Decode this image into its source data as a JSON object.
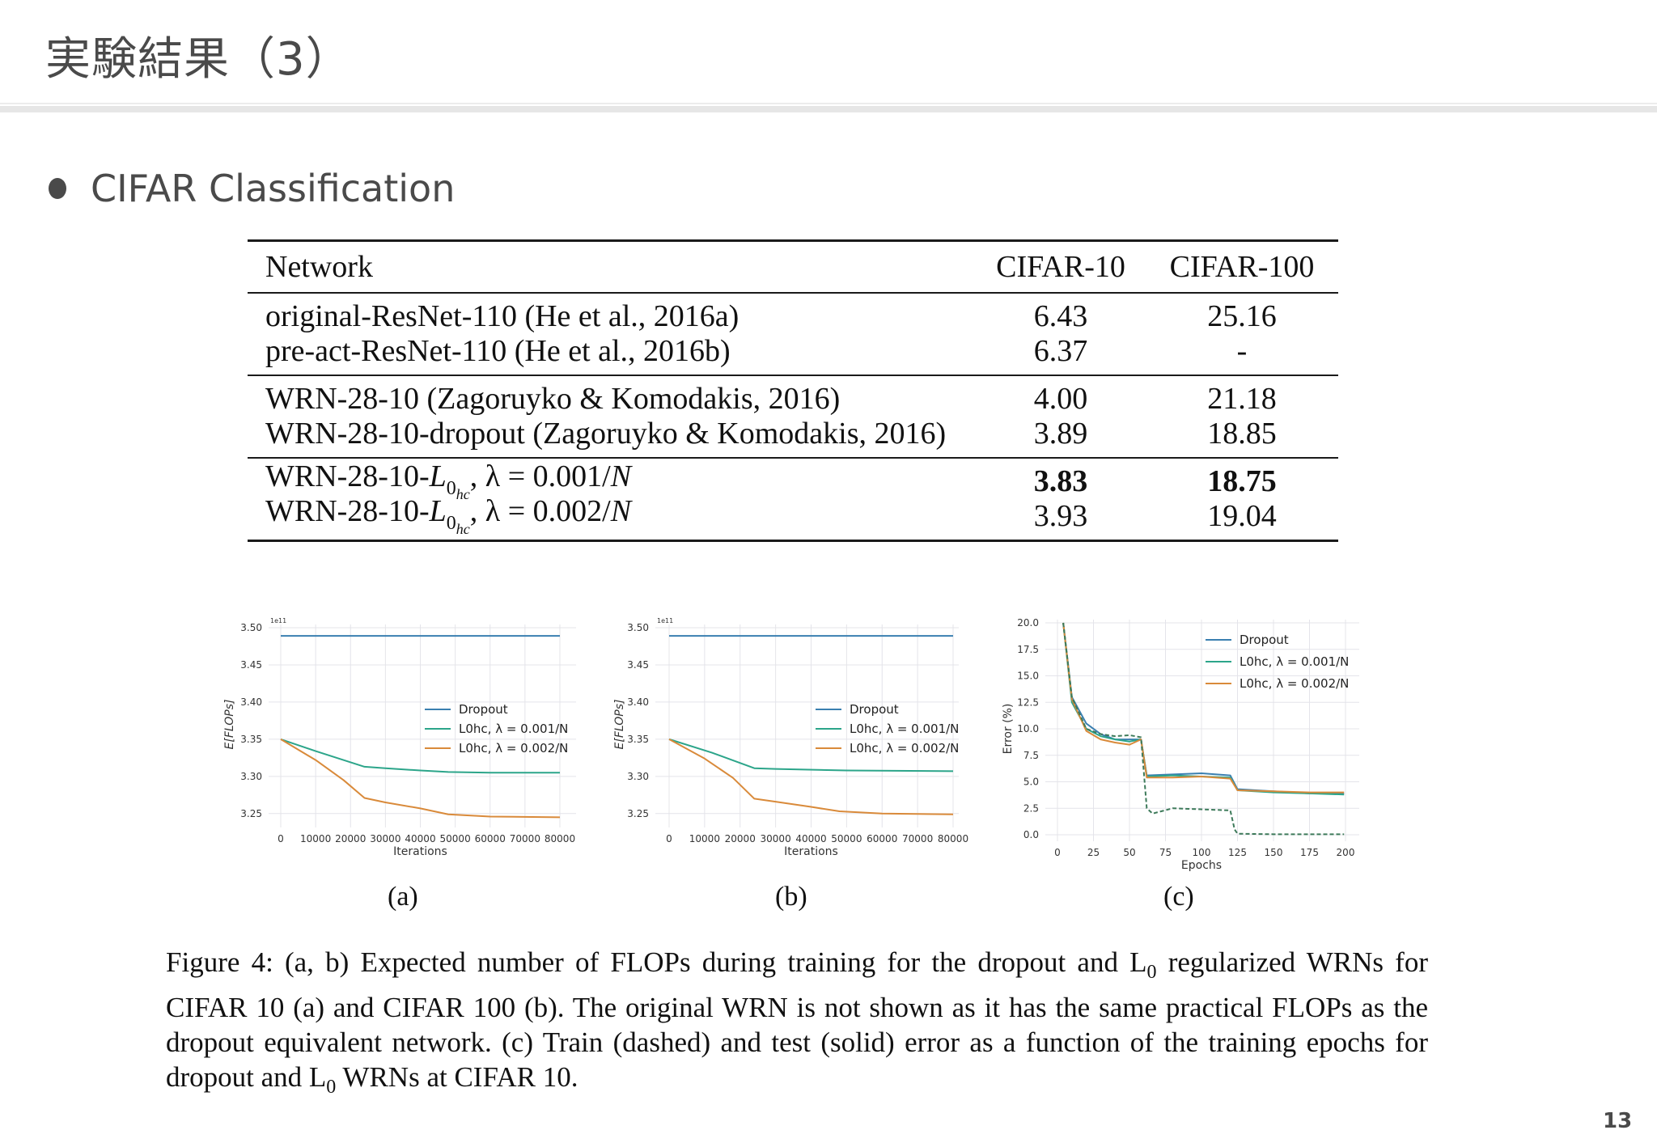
{
  "slide": {
    "title": "実験結果（3）",
    "bullet": "CIFAR Classification",
    "page_number": "13"
  },
  "table": {
    "headers": [
      "Network",
      "CIFAR-10",
      "CIFAR-100"
    ],
    "groups": [
      [
        {
          "network": "original-ResNet-110 (He et al., 2016a)",
          "cifar10": "6.43",
          "cifar100": "25.16"
        },
        {
          "network": "pre-act-ResNet-110 (He et al., 2016b)",
          "cifar10": "6.37",
          "cifar100": "-"
        }
      ],
      [
        {
          "network": "WRN-28-10 (Zagoruyko & Komodakis, 2016)",
          "cifar10": "4.00",
          "cifar100": "21.18"
        },
        {
          "network": "WRN-28-10-dropout (Zagoruyko & Komodakis, 2016)",
          "cifar10": "3.89",
          "cifar100": "18.85"
        }
      ],
      [
        {
          "network_prefix": "WRN-28-10-",
          "network_L": "L",
          "network_sub0": "0",
          "network_subhc": "hc",
          "network_suffix": ", λ = 0.001/",
          "network_N": "N",
          "cifar10": "3.83",
          "cifar100": "18.75",
          "bold": true
        },
        {
          "network_prefix": "WRN-28-10-",
          "network_L": "L",
          "network_sub0": "0",
          "network_subhc": "hc",
          "network_suffix": ", λ = 0.002/",
          "network_N": "N",
          "cifar10": "3.93",
          "cifar100": "19.04",
          "bold": false
        }
      ]
    ]
  },
  "figure": {
    "labels": [
      "(a)",
      "(b)",
      "(c)"
    ],
    "caption": [
      "Figure 4: (a, b) Expected number of FLOPs during training for the dropout and L",
      "0",
      " regularized WRNs for CIFAR 10 (a) and CIFAR 100 (b). The original WRN is not shown as it has the same practical FLOPs as the dropout equivalent network. (c) Train (dashed) and test (solid) error as a function of the training epochs for dropout and L",
      "0",
      " WRNs at CIFAR 10."
    ]
  },
  "colors": {
    "dropout": "#3a7fb0",
    "l0_001": "#2ca58a",
    "l0_002": "#d98a3a",
    "grid": "#e4e4ea",
    "text": "#4a4a4a"
  },
  "chart_data": [
    {
      "id": "a",
      "type": "line",
      "title": "",
      "xlabel": "Iterations",
      "ylabel": "E[FLOPs]",
      "y_scale_note": "1e11",
      "xlim": [
        0,
        80000
      ],
      "ylim": [
        3.24,
        3.5
      ],
      "x_ticks": [
        "0",
        "10000",
        "20000",
        "30000",
        "40000",
        "50000",
        "60000",
        "70000",
        "80000"
      ],
      "y_ticks": [
        "3.25",
        "3.30",
        "3.35",
        "3.40",
        "3.45",
        "3.50"
      ],
      "legend": [
        "Dropout",
        "L0hc, λ = 0.001/N",
        "L0hc, λ = 0.002/N"
      ],
      "legend_position": "center-right",
      "grid": true,
      "series": [
        {
          "name": "Dropout",
          "x": [
            0,
            80000
          ],
          "y": [
            3.489,
            3.489
          ]
        },
        {
          "name": "L0hc, λ = 0.001/N",
          "x": [
            0,
            10000,
            24000,
            30000,
            40000,
            48000,
            60000,
            80000
          ],
          "y": [
            3.35,
            3.334,
            3.313,
            3.311,
            3.308,
            3.306,
            3.305,
            3.305
          ]
        },
        {
          "name": "L0hc, λ = 0.002/N",
          "x": [
            0,
            10000,
            18000,
            24000,
            30000,
            40000,
            48000,
            60000,
            80000
          ],
          "y": [
            3.35,
            3.322,
            3.295,
            3.271,
            3.265,
            3.257,
            3.249,
            3.246,
            3.245
          ]
        }
      ]
    },
    {
      "id": "b",
      "type": "line",
      "title": "",
      "xlabel": "Iterations",
      "ylabel": "E[FLOPs]",
      "y_scale_note": "1e11",
      "xlim": [
        0,
        80000
      ],
      "ylim": [
        3.24,
        3.5
      ],
      "x_ticks": [
        "0",
        "10000",
        "20000",
        "30000",
        "40000",
        "50000",
        "60000",
        "70000",
        "80000"
      ],
      "y_ticks": [
        "3.25",
        "3.30",
        "3.35",
        "3.40",
        "3.45",
        "3.50"
      ],
      "legend": [
        "Dropout",
        "L0hc, λ = 0.001/N",
        "L0hc, λ = 0.002/N"
      ],
      "legend_position": "center-right",
      "grid": true,
      "series": [
        {
          "name": "Dropout",
          "x": [
            0,
            80000
          ],
          "y": [
            3.489,
            3.489
          ]
        },
        {
          "name": "L0hc, λ = 0.001/N",
          "x": [
            0,
            12000,
            24000,
            30000,
            50000,
            80000
          ],
          "y": [
            3.35,
            3.332,
            3.311,
            3.31,
            3.308,
            3.307
          ]
        },
        {
          "name": "L0hc, λ = 0.002/N",
          "x": [
            0,
            10000,
            18000,
            24000,
            30000,
            40000,
            48000,
            60000,
            80000
          ],
          "y": [
            3.35,
            3.324,
            3.298,
            3.27,
            3.266,
            3.259,
            3.253,
            3.25,
            3.249
          ]
        }
      ]
    },
    {
      "id": "c",
      "type": "line",
      "title": "",
      "xlabel": "Epochs",
      "ylabel": "Error (%)",
      "xlim": [
        0,
        200
      ],
      "ylim": [
        0,
        20
      ],
      "x_ticks": [
        "0",
        "25",
        "50",
        "75",
        "100",
        "125",
        "150",
        "175",
        "200"
      ],
      "y_ticks": [
        "0.0",
        "2.5",
        "5.0",
        "7.5",
        "10.0",
        "12.5",
        "15.0",
        "17.5",
        "20.0"
      ],
      "legend": [
        "Dropout",
        "L0hc, λ = 0.001/N",
        "L0hc, λ = 0.002/N"
      ],
      "legend_position": "upper right",
      "grid": true,
      "notes": "solid = test error, dashed = train error",
      "series": [
        {
          "name": "Dropout (test)",
          "x": [
            4,
            10,
            20,
            30,
            40,
            50,
            58,
            62,
            80,
            100,
            120,
            125,
            150,
            175,
            199
          ],
          "y": [
            20.0,
            13.0,
            10.5,
            9.5,
            9.0,
            9.0,
            9.0,
            5.6,
            5.7,
            5.8,
            5.6,
            4.3,
            4.1,
            3.9,
            3.9
          ]
        },
        {
          "name": "L0hc, λ = 0.001/N (test)",
          "x": [
            4,
            10,
            20,
            30,
            40,
            50,
            58,
            62,
            80,
            100,
            120,
            125,
            150,
            175,
            199
          ],
          "y": [
            20.0,
            12.5,
            10.0,
            9.3,
            9.0,
            8.8,
            9.0,
            5.5,
            5.6,
            5.5,
            5.4,
            4.2,
            4.0,
            3.9,
            3.8
          ]
        },
        {
          "name": "L0hc, λ = 0.002/N (test)",
          "x": [
            4,
            10,
            20,
            30,
            40,
            50,
            58,
            62,
            80,
            100,
            120,
            125,
            150,
            175,
            199
          ],
          "y": [
            20.0,
            12.8,
            9.8,
            9.0,
            8.7,
            8.5,
            9.0,
            5.4,
            5.4,
            5.5,
            5.3,
            4.2,
            4.1,
            4.0,
            4.0
          ]
        },
        {
          "name": "Train (dashed, all)",
          "x": [
            4,
            10,
            20,
            30,
            40,
            50,
            58,
            62,
            66,
            80,
            100,
            120,
            123,
            125,
            150,
            199
          ],
          "y": [
            20.0,
            13.0,
            10.0,
            9.5,
            9.3,
            9.4,
            9.2,
            2.5,
            2.0,
            2.5,
            2.4,
            2.3,
            0.5,
            0.1,
            0.05,
            0.05
          ]
        }
      ]
    }
  ]
}
